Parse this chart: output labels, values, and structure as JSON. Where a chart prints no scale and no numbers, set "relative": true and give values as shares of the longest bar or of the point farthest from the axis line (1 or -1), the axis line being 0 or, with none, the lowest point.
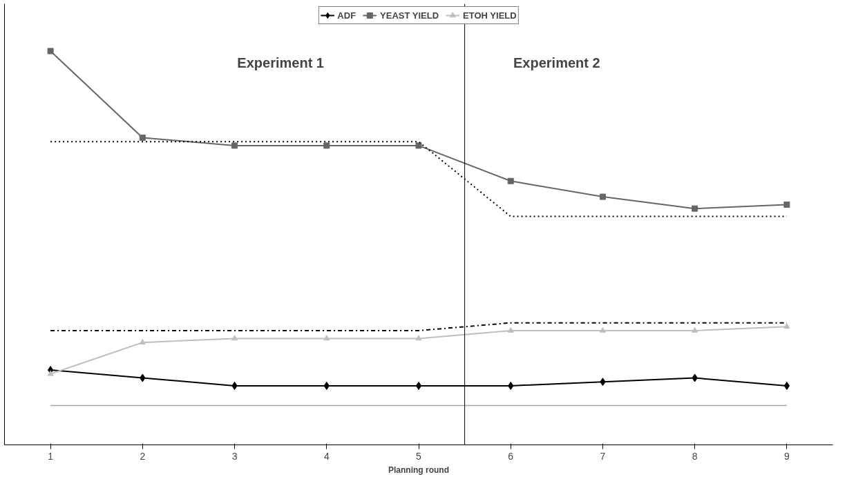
{
  "chart_data": {
    "type": "line",
    "relative": true,
    "xlabel": "Planning round",
    "x": [
      1,
      2,
      3,
      4,
      5,
      6,
      7,
      8,
      9
    ],
    "xlim": [
      0.5,
      9.5
    ],
    "xticks": [
      1,
      2,
      3,
      4,
      5,
      6,
      7,
      8,
      9
    ],
    "legend": "top",
    "grid": false,
    "series": [
      {
        "name": "ADF",
        "color": "#000000",
        "marker": "diamond",
        "line_style": "solid",
        "values": [
          0.19,
          0.17,
          0.15,
          0.15,
          0.15,
          0.15,
          0.16,
          0.17,
          0.15
        ]
      },
      {
        "name": "YEAST YIELD",
        "color": "#666666",
        "marker": "square",
        "line_style": "solid",
        "values": [
          1,
          0.78,
          0.76,
          0.76,
          0.76,
          0.67,
          0.63,
          0.6,
          0.61
        ]
      },
      {
        "name": "ETOH YIELD",
        "color": "#bfbfbf",
        "marker": "triangle",
        "line_style": "solid",
        "values": [
          0.18,
          0.26,
          0.27,
          0.27,
          0.27,
          0.29,
          0.29,
          0.29,
          0.3
        ]
      },
      {
        "color": "#000000",
        "marker": "none",
        "line_style": "dotted",
        "values": [
          0.77,
          0.77,
          0.77,
          0.77,
          0.77,
          0.58,
          0.58,
          0.58,
          0.58
        ]
      },
      {
        "color": "#000000",
        "marker": "none",
        "line_style": "dashed",
        "values": [
          0.29,
          0.29,
          0.29,
          0.29,
          0.29,
          0.31,
          0.31,
          0.31,
          0.31
        ]
      },
      {
        "color": "#a6a6a6",
        "marker": "none",
        "line_style": "solid",
        "values": [
          0.1,
          0.1,
          0.1,
          0.1,
          0.1,
          0.1,
          0.1,
          0.1,
          0.1
        ]
      }
    ],
    "ref_lines": [
      {
        "axis": "x",
        "value": 5.5,
        "color": "#000000"
      }
    ],
    "annotations": [
      "Experiment 1",
      "Experiment 2"
    ]
  }
}
